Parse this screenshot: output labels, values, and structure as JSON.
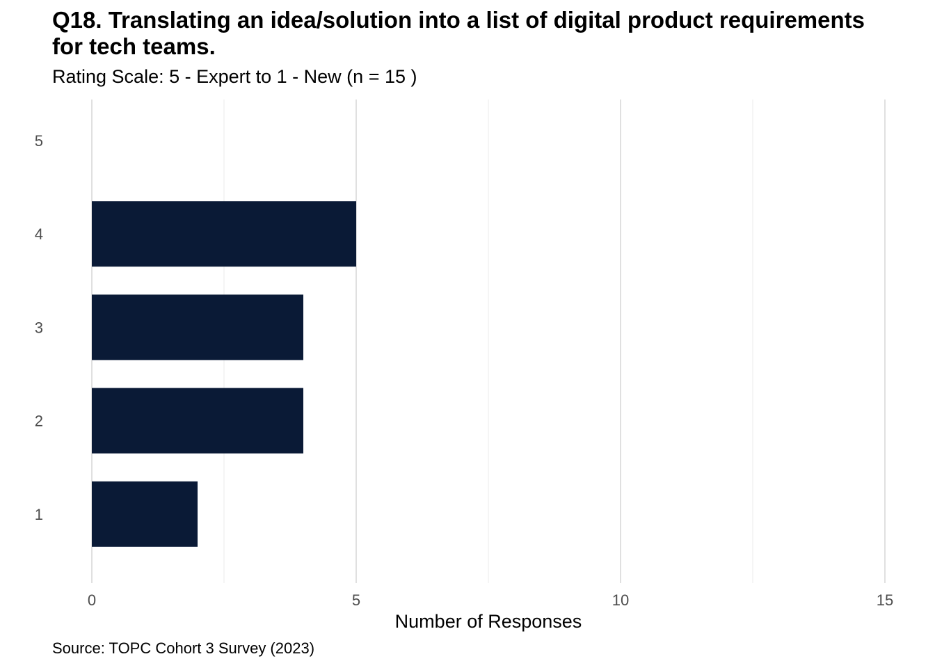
{
  "chart_data": {
    "type": "bar",
    "orientation": "horizontal",
    "title": "Q18. Translating an idea/solution into a list of digital product requirements for tech teams.",
    "subtitle": "Rating Scale: 5 - Expert to 1 - New (n = 15 )",
    "caption": "Source: TOPC Cohort 3 Survey (2023)",
    "xlabel": "Number of Responses",
    "ylabel": "",
    "xlim": [
      0,
      15
    ],
    "x_ticks": [
      0,
      5,
      10,
      15
    ],
    "x_minor_ticks": [
      2.5,
      7.5,
      12.5
    ],
    "categories": [
      "5",
      "4",
      "3",
      "2",
      "1"
    ],
    "values": [
      0,
      5,
      4,
      4,
      2
    ],
    "bar_color": "#0a1a36",
    "grid": true,
    "legend": "none"
  }
}
